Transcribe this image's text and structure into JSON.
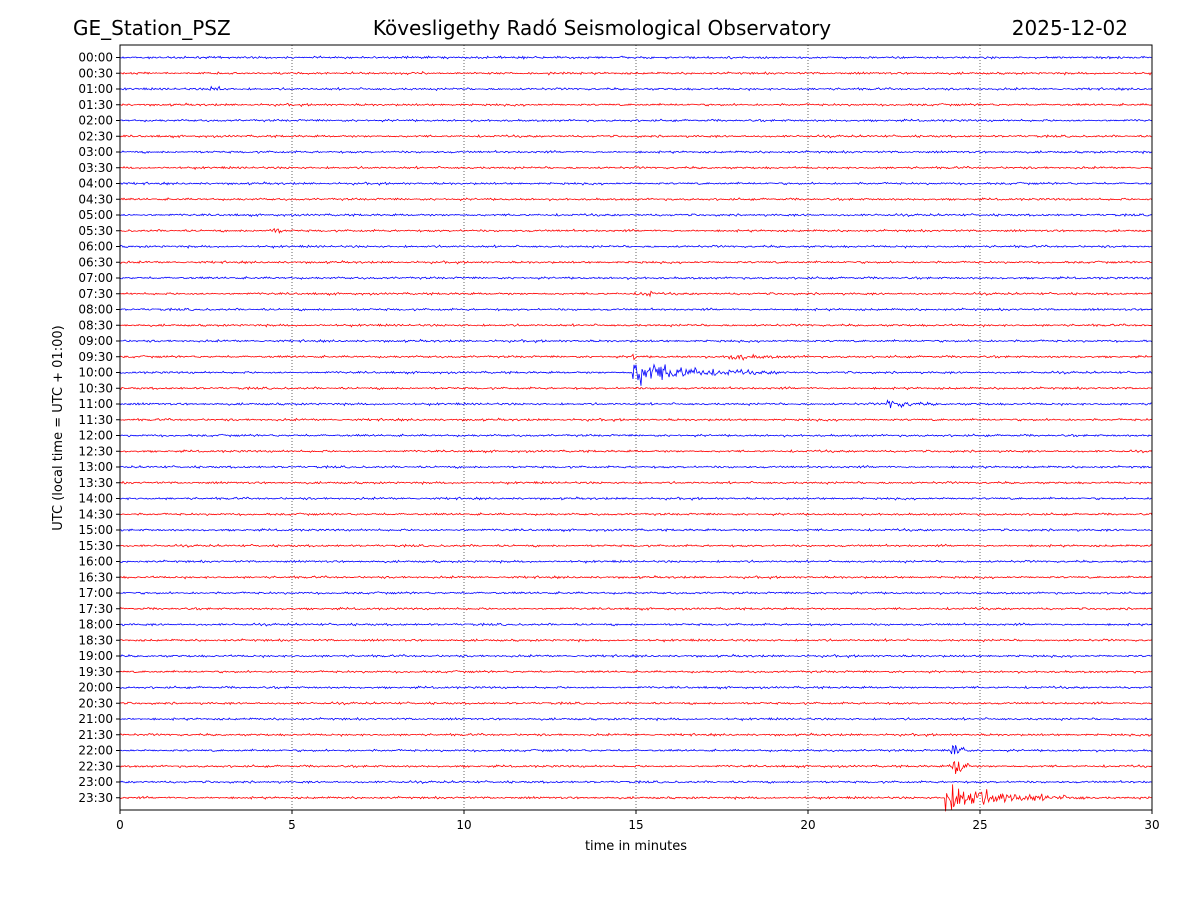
{
  "header": {
    "station": "GE_Station_PSZ",
    "observatory": "Kövesligethy Radó Seismological Observatory",
    "date": "2025-12-02"
  },
  "chart_data": {
    "type": "line",
    "title": "Kövesligethy Radó Seismological Observatory",
    "xlabel": "time in minutes",
    "ylabel": "UTC (local time = UTC + 01:00)",
    "xlim": [
      0,
      30
    ],
    "xticks": [
      0,
      5,
      10,
      15,
      20,
      25,
      30
    ],
    "grid": "vertical dotted lines at 5-minute intervals",
    "row_labels": [
      "00:00",
      "00:30",
      "01:00",
      "01:30",
      "02:00",
      "02:30",
      "03:00",
      "03:30",
      "04:00",
      "04:30",
      "05:00",
      "05:30",
      "06:00",
      "06:30",
      "07:00",
      "07:30",
      "08:00",
      "08:30",
      "09:00",
      "09:30",
      "10:00",
      "10:30",
      "11:00",
      "11:30",
      "12:00",
      "12:30",
      "13:00",
      "13:30",
      "14:00",
      "14:30",
      "15:00",
      "15:30",
      "16:00",
      "16:30",
      "17:00",
      "17:30",
      "18:00",
      "18:30",
      "19:00",
      "19:30",
      "20:00",
      "20:30",
      "21:00",
      "21:30",
      "22:00",
      "22:30",
      "23:00",
      "23:30"
    ],
    "trace_colors": {
      "even_rows": "#0000ff",
      "odd_rows": "#ff0000"
    },
    "events": [
      {
        "row": "01:00",
        "start_min": 2.6,
        "duration_min": 0.4,
        "amplitude": 0.35
      },
      {
        "row": "05:30",
        "start_min": 4.2,
        "duration_min": 0.6,
        "amplitude": 0.18
      },
      {
        "row": "07:30",
        "start_min": 15.0,
        "duration_min": 0.6,
        "amplitude": 0.22
      },
      {
        "row": "09:30",
        "start_min": 17.7,
        "duration_min": 2.3,
        "amplitude": 0.3
      },
      {
        "row": "09:30",
        "start_min": 14.9,
        "duration_min": 0.15,
        "amplitude": 0.9
      },
      {
        "row": "10:00",
        "start_min": 14.9,
        "duration_min": 4.5,
        "amplitude": 1.25
      },
      {
        "row": "11:00",
        "start_min": 22.3,
        "duration_min": 1.6,
        "amplitude": 0.45
      },
      {
        "row": "22:00",
        "start_min": 24.1,
        "duration_min": 0.5,
        "amplitude": 0.9
      },
      {
        "row": "22:30",
        "start_min": 24.1,
        "duration_min": 0.6,
        "amplitude": 1.0
      },
      {
        "row": "23:30",
        "start_min": 24.0,
        "duration_min": 4.2,
        "amplitude": 1.6
      }
    ],
    "base_noise_amplitude": 0.09
  }
}
